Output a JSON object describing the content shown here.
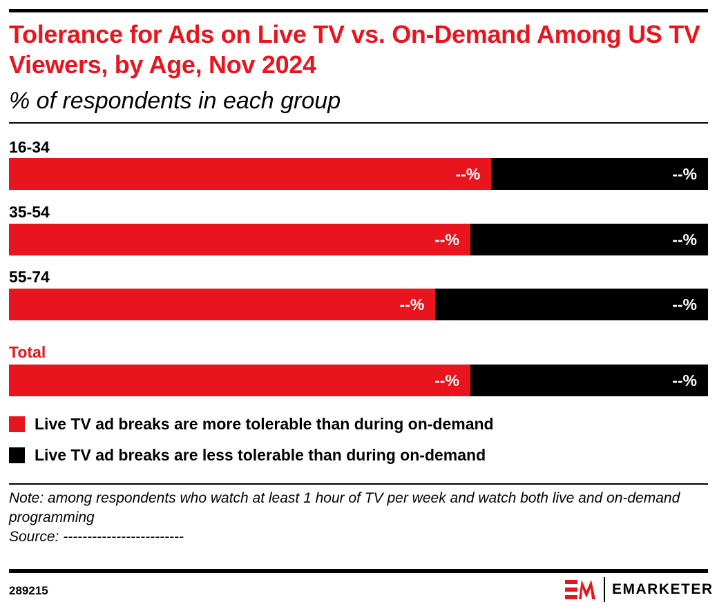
{
  "header": {
    "title": "Tolerance for Ads on Live TV vs. On-Demand Among US TV Viewers, by Age, Nov 2024",
    "subtitle": "% of respondents in each group"
  },
  "chart_data": {
    "type": "bar",
    "orientation": "horizontal",
    "stacked": true,
    "title": "Tolerance for Ads on Live TV vs. On-Demand Among US TV Viewers, by Age, Nov 2024",
    "subtitle": "% of respondents in each group",
    "categories": [
      "16-34",
      "35-54",
      "55-74",
      "Total"
    ],
    "series": [
      {
        "name": "Live TV ad breaks are more tolerable than during on-demand",
        "color": "#e8141e",
        "values": [
          69,
          66,
          61,
          66
        ],
        "labels": [
          "--%",
          "--%",
          "--%",
          "--%"
        ]
      },
      {
        "name": "Live TV ad breaks are less tolerable than during on-demand",
        "color": "#000000",
        "values": [
          31,
          34,
          39,
          34
        ],
        "labels": [
          "--%",
          "--%",
          "--%",
          "--%"
        ]
      }
    ],
    "xlim": [
      0,
      100
    ],
    "grid": false,
    "legend_position": "bottom"
  },
  "footer": {
    "note": "Note: among respondents who watch at least 1 hour of TV per week and watch both live and on-demand programming",
    "source": "Source: -------------------------",
    "chart_id": "289215",
    "logo_text": "EMARKETER"
  }
}
